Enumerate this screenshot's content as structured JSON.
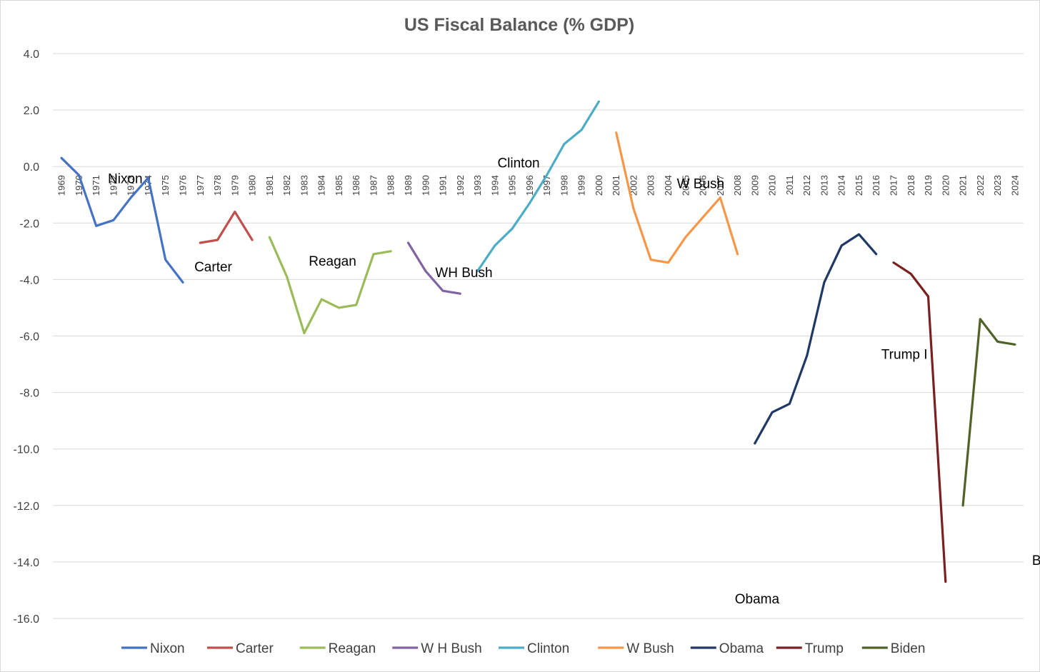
{
  "chart_data": {
    "type": "line",
    "title": "US Fiscal Balance (% GDP)",
    "xlabel": "",
    "ylabel": "",
    "ylim": [
      -16,
      4
    ],
    "ytick_labels": [
      "4.0",
      "2.0",
      "0.0",
      "-2.0",
      "-4.0",
      "-6.0",
      "-8.0",
      "-10.0",
      "-12.0",
      "-14.0",
      "-16.0"
    ],
    "categories": [
      "1969",
      "1970",
      "1971",
      "1972",
      "1973",
      "1974",
      "1975",
      "1976",
      "1977",
      "1978",
      "1979",
      "1980",
      "1981",
      "1982",
      "1983",
      "1984",
      "1985",
      "1986",
      "1987",
      "1988",
      "1989",
      "1990",
      "1991",
      "1992",
      "1993",
      "1994",
      "1995",
      "1996",
      "1997",
      "1998",
      "1999",
      "2000",
      "2001",
      "2002",
      "2003",
      "2004",
      "2005",
      "2006",
      "2007",
      "2008",
      "2009",
      "2010",
      "2011",
      "2012",
      "2013",
      "2014",
      "2015",
      "2016",
      "2017",
      "2018",
      "2019",
      "2020",
      "2021",
      "2022",
      "2023",
      "2024"
    ],
    "grid": true,
    "legend_position": "bottom",
    "series": [
      {
        "name": "Nixon",
        "color": "#4472C4",
        "x": [
          "1969",
          "1970",
          "1971",
          "1972",
          "1973",
          "1974",
          "1975",
          "1976"
        ],
        "values": [
          0.3,
          -0.3,
          -2.1,
          -1.9,
          -1.1,
          -0.4,
          -3.3,
          -4.1
        ]
      },
      {
        "name": "Carter",
        "color": "#C0504D",
        "x": [
          "1977",
          "1978",
          "1979",
          "1980"
        ],
        "values": [
          -2.7,
          -2.6,
          -1.6,
          -2.6
        ]
      },
      {
        "name": "Reagan",
        "color": "#9BBB59",
        "x": [
          "1981",
          "1982",
          "1983",
          "1984",
          "1985",
          "1986",
          "1987",
          "1988"
        ],
        "values": [
          -2.5,
          -3.9,
          -5.9,
          -4.7,
          -5.0,
          -4.9,
          -3.1,
          -3.0
        ]
      },
      {
        "name": "W H Bush",
        "color": "#8064A2",
        "x": [
          "1989",
          "1990",
          "1991",
          "1992"
        ],
        "values": [
          -2.7,
          -3.7,
          -4.4,
          -4.5
        ]
      },
      {
        "name": "Clinton",
        "color": "#4BACC6",
        "x": [
          "1993",
          "1994",
          "1995",
          "1996",
          "1997",
          "1998",
          "1999",
          "2000"
        ],
        "values": [
          -3.7,
          -2.8,
          -2.2,
          -1.3,
          -0.3,
          0.8,
          1.3,
          2.3
        ]
      },
      {
        "name": "W Bush",
        "color": "#F79646",
        "x": [
          "2001",
          "2002",
          "2003",
          "2004",
          "2005",
          "2006",
          "2007",
          "2008"
        ],
        "values": [
          1.2,
          -1.5,
          -3.3,
          -3.4,
          -2.5,
          -1.8,
          -1.1,
          -3.1
        ]
      },
      {
        "name": "Obama",
        "color": "#1F3864",
        "x": [
          "2009",
          "2010",
          "2011",
          "2012",
          "2013",
          "2014",
          "2015",
          "2016"
        ],
        "values": [
          -9.8,
          -8.7,
          -8.4,
          -6.7,
          -4.1,
          -2.8,
          -2.4,
          -3.1
        ]
      },
      {
        "name": "Trump",
        "color": "#7B2020",
        "x": [
          "2017",
          "2018",
          "2019",
          "2020"
        ],
        "values": [
          -3.4,
          -3.8,
          -4.6,
          -14.7
        ]
      },
      {
        "name": "Biden",
        "color": "#4F6228",
        "x": [
          "2021",
          "2022",
          "2023",
          "2024"
        ],
        "values": [
          -12.0,
          -5.4,
          -6.2,
          -6.3
        ]
      }
    ],
    "annotations": [
      {
        "text": "Nixon",
        "series": "Nixon"
      },
      {
        "text": "Carter",
        "series": "Carter"
      },
      {
        "text": "Reagan",
        "series": "Reagan"
      },
      {
        "text": "WH Bush",
        "series": "W H Bush"
      },
      {
        "text": "Clinton",
        "series": "Clinton"
      },
      {
        "text": "W Bush",
        "series": "W Bush"
      },
      {
        "text": "Obama",
        "series": "Obama"
      },
      {
        "text": "Trump I",
        "series": "Trump"
      },
      {
        "text": "Biden",
        "series": "Biden"
      }
    ]
  }
}
